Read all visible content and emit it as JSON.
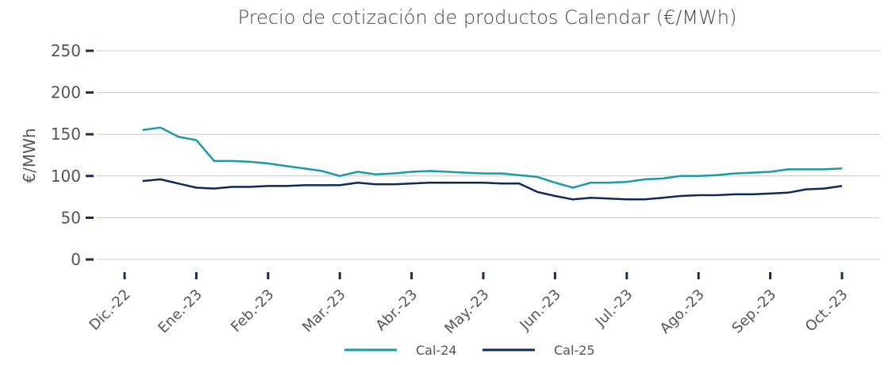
{
  "chart_data": {
    "type": "line",
    "title": "Precio de cotización de productos Calendar (€/MWh)",
    "y_label": "€/MWh",
    "categories": [
      "Dic.-22",
      null,
      null,
      null,
      "Ene.-23",
      null,
      null,
      null,
      "Feb.-23",
      null,
      null,
      null,
      "Mar.-23",
      null,
      null,
      null,
      "Abr.-23",
      null,
      null,
      null,
      "May.-23",
      null,
      null,
      null,
      "Jun.-23",
      null,
      null,
      null,
      "Jul.-23",
      null,
      null,
      null,
      "Ago.-23",
      null,
      null,
      null,
      "Sep.-23",
      null,
      null,
      null,
      "Oct.-23"
    ],
    "series": [
      {
        "name": "Cal-24",
        "color": "#1b9aa8",
        "values": [
          null,
          155,
          158,
          147,
          143,
          118,
          118,
          117,
          115,
          112,
          109,
          106,
          100,
          105,
          102,
          103,
          105,
          106,
          105,
          104,
          103,
          103,
          101,
          99,
          92,
          86,
          92,
          92,
          93,
          96,
          97,
          100,
          100,
          101,
          103,
          104,
          105,
          108,
          108,
          108,
          109
        ]
      },
      {
        "name": "Cal-25",
        "color": "#0f2a5a",
        "values": [
          null,
          94,
          96,
          91,
          86,
          85,
          87,
          87,
          88,
          88,
          89,
          89,
          89,
          92,
          90,
          90,
          91,
          92,
          92,
          92,
          92,
          91,
          91,
          81,
          76,
          72,
          74,
          73,
          72,
          72,
          74,
          76,
          77,
          77,
          78,
          78,
          79,
          80,
          84,
          85,
          88
        ]
      }
    ],
    "ylim": [
      0,
      250
    ],
    "yticks": [
      0,
      50,
      100,
      150,
      200,
      250
    ],
    "grid": true,
    "legend": "bottom"
  }
}
